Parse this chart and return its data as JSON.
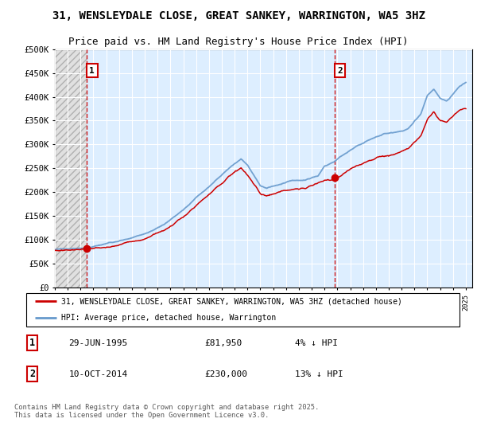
{
  "title": "31, WENSLEYDALE CLOSE, GREAT SANKEY, WARRINGTON, WA5 3HZ",
  "subtitle": "Price paid vs. HM Land Registry's House Price Index (HPI)",
  "background_color": "#ffffff",
  "plot_bg_color": "#ddeeff",
  "grid_color": "#ffffff",
  "ylim": [
    0,
    500000
  ],
  "yticks": [
    0,
    50000,
    100000,
    150000,
    200000,
    250000,
    300000,
    350000,
    400000,
    450000,
    500000
  ],
  "ytick_labels": [
    "£0",
    "£50K",
    "£100K",
    "£150K",
    "£200K",
    "£250K",
    "£300K",
    "£350K",
    "£400K",
    "£450K",
    "£500K"
  ],
  "xlim_start": 1993.0,
  "xlim_end": 2025.5,
  "xtick_years": [
    1993,
    1994,
    1995,
    1996,
    1997,
    1998,
    1999,
    2000,
    2001,
    2002,
    2003,
    2004,
    2005,
    2006,
    2007,
    2008,
    2009,
    2010,
    2011,
    2012,
    2013,
    2014,
    2015,
    2016,
    2017,
    2018,
    2019,
    2020,
    2021,
    2022,
    2023,
    2024,
    2025
  ],
  "sale1_x": 1995.49,
  "sale1_y": 81950,
  "sale2_x": 2014.78,
  "sale2_y": 230000,
  "sale_color": "#cc0000",
  "vline_color": "#cc0000",
  "hpi_color": "#6699cc",
  "price_color": "#cc0000",
  "legend_entry1": "31, WENSLEYDALE CLOSE, GREAT SANKEY, WARRINGTON, WA5 3HZ (detached house)",
  "legend_entry2": "HPI: Average price, detached house, Warrington",
  "footnote": "Contains HM Land Registry data © Crown copyright and database right 2025.\nThis data is licensed under the Open Government Licence v3.0.",
  "title_fontsize": 10,
  "subtitle_fontsize": 9
}
